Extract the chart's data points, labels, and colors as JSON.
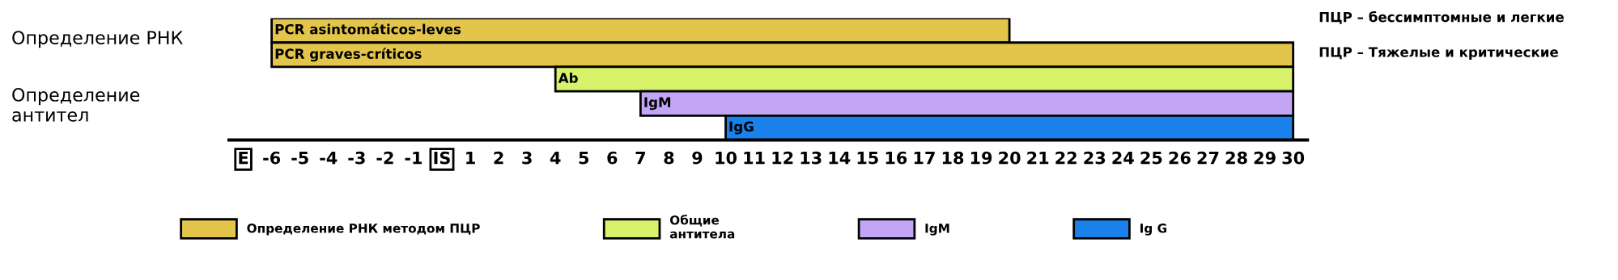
{
  "chart_data": {
    "type": "bar",
    "orientation": "horizontal",
    "categories": [
      "PCR asintomáticos-leves",
      "PCR graves-críticos",
      "Ab",
      "IgM",
      "IgG"
    ],
    "series": [
      {
        "name": "Определение РНК методом ПЦР",
        "color": "#e2c54a",
        "values": [
          26,
          36,
          null,
          null,
          null
        ],
        "base": [
          -6,
          -6,
          null,
          null,
          null
        ]
      },
      {
        "name": "Общие\nантитела",
        "color": "#d8f26a",
        "values": [
          null,
          null,
          26,
          null,
          null
        ],
        "base": [
          null,
          null,
          4,
          null,
          null
        ]
      },
      {
        "name": "IgM",
        "color": "#c2a6f5",
        "values": [
          null,
          null,
          null,
          23,
          null
        ],
        "base": [
          null,
          null,
          null,
          7,
          null
        ]
      },
      {
        "name": "Ig G",
        "color": "#1a80ea",
        "values": [
          null,
          null,
          null,
          null,
          20
        ],
        "base": [
          null,
          null,
          null,
          null,
          10
        ]
      }
    ],
    "xlim": [
      -7.5,
      30.5
    ],
    "xticks": [
      {
        "value": -7,
        "label": "E"
      },
      -6,
      -5,
      -4,
      -3,
      -2,
      -1,
      {
        "value": 0,
        "label": "IS"
      },
      1,
      2,
      3,
      4,
      5,
      6,
      7,
      8,
      9,
      10,
      11,
      12,
      13,
      14,
      15,
      16,
      17,
      18,
      19,
      20,
      21,
      22,
      23,
      24,
      25,
      26,
      27,
      28,
      29,
      30
    ],
    "tick_labels": "x",
    "grid": false,
    "legend": "bottom",
    "annotations": [
      "Определение РНК",
      "Определение\nантител",
      "ПЦР – бессимптомные и легкие",
      "ПЦР – Тяжелые и критические"
    ]
  }
}
